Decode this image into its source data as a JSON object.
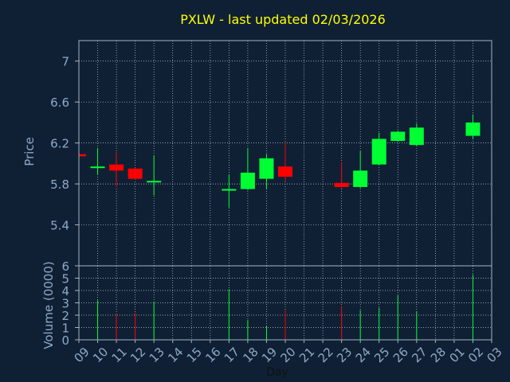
{
  "chart_data": {
    "type": "candlestick",
    "title": "PXLW - last updated 02/03/2026",
    "xlabel": "Day",
    "price_panel": {
      "ylabel": "Price",
      "ylim": [
        5.0,
        7.2
      ],
      "yticks": [
        "5.4",
        "5.8",
        "6.2",
        "6.6",
        "7"
      ],
      "ytick_values": [
        5.4,
        5.8,
        6.2,
        6.6,
        7.0
      ]
    },
    "volume_panel": {
      "ylabel": "Volume (0000)",
      "ylim": [
        0,
        6
      ],
      "yticks": [
        "0",
        "1",
        "2",
        "3",
        "4",
        "5",
        "6"
      ],
      "ytick_values": [
        0,
        1,
        2,
        3,
        4,
        5,
        6
      ]
    },
    "x_ticks": [
      "09",
      "10",
      "11",
      "12",
      "13",
      "14",
      "15",
      "16",
      "17",
      "18",
      "19",
      "20",
      "21",
      "22",
      "23",
      "24",
      "25",
      "26",
      "27",
      "28",
      "01",
      "02",
      "03"
    ],
    "x_range": [
      0,
      22
    ],
    "grid": true,
    "candles": [
      {
        "x": 0.0,
        "open": 6.09,
        "high": 6.09,
        "low": 6.07,
        "close": 6.07,
        "volume": 0
      },
      {
        "x": 1.0,
        "open": 5.96,
        "high": 6.15,
        "low": 5.89,
        "close": 5.97,
        "volume": 3.2
      },
      {
        "x": 2.0,
        "open": 5.99,
        "high": 6.11,
        "low": 5.77,
        "close": 5.93,
        "volume": 2.1
      },
      {
        "x": 3.0,
        "open": 5.95,
        "high": 5.96,
        "low": 5.84,
        "close": 5.85,
        "volume": 2.2
      },
      {
        "x": 4.0,
        "open": 5.82,
        "high": 6.08,
        "low": 5.69,
        "close": 5.83,
        "volume": 3.1
      },
      {
        "x": 8.0,
        "open": 5.74,
        "high": 5.89,
        "low": 5.57,
        "close": 5.75,
        "volume": 4.1
      },
      {
        "x": 9.0,
        "open": 5.75,
        "high": 6.15,
        "low": 5.74,
        "close": 5.91,
        "volume": 1.6
      },
      {
        "x": 10.0,
        "open": 5.85,
        "high": 6.09,
        "low": 5.75,
        "close": 6.05,
        "volume": 1.1
      },
      {
        "x": 11.0,
        "open": 5.97,
        "high": 6.2,
        "low": 5.83,
        "close": 5.87,
        "volume": 2.4
      },
      {
        "x": 14.0,
        "open": 5.81,
        "high": 6.01,
        "low": 5.76,
        "close": 5.77,
        "volume": 2.7
      },
      {
        "x": 15.0,
        "open": 5.77,
        "high": 6.12,
        "low": 5.76,
        "close": 5.93,
        "volume": 2.4
      },
      {
        "x": 16.0,
        "open": 5.99,
        "high": 6.3,
        "low": 5.98,
        "close": 6.24,
        "volume": 2.6
      },
      {
        "x": 17.0,
        "open": 6.22,
        "high": 6.32,
        "low": 6.21,
        "close": 6.31,
        "volume": 3.6
      },
      {
        "x": 18.0,
        "open": 6.18,
        "high": 6.39,
        "low": 6.17,
        "close": 6.35,
        "volume": 2.3
      },
      {
        "x": 21.0,
        "open": 6.27,
        "high": 6.48,
        "low": 6.24,
        "close": 6.4,
        "volume": 5.3
      }
    ],
    "colors": {
      "background": "#0f2035",
      "axis": "#a0b4c8",
      "tick_text": "#8fa9c4",
      "title": "#ffff00",
      "up": "#00ff33",
      "down": "#ff0000"
    }
  }
}
